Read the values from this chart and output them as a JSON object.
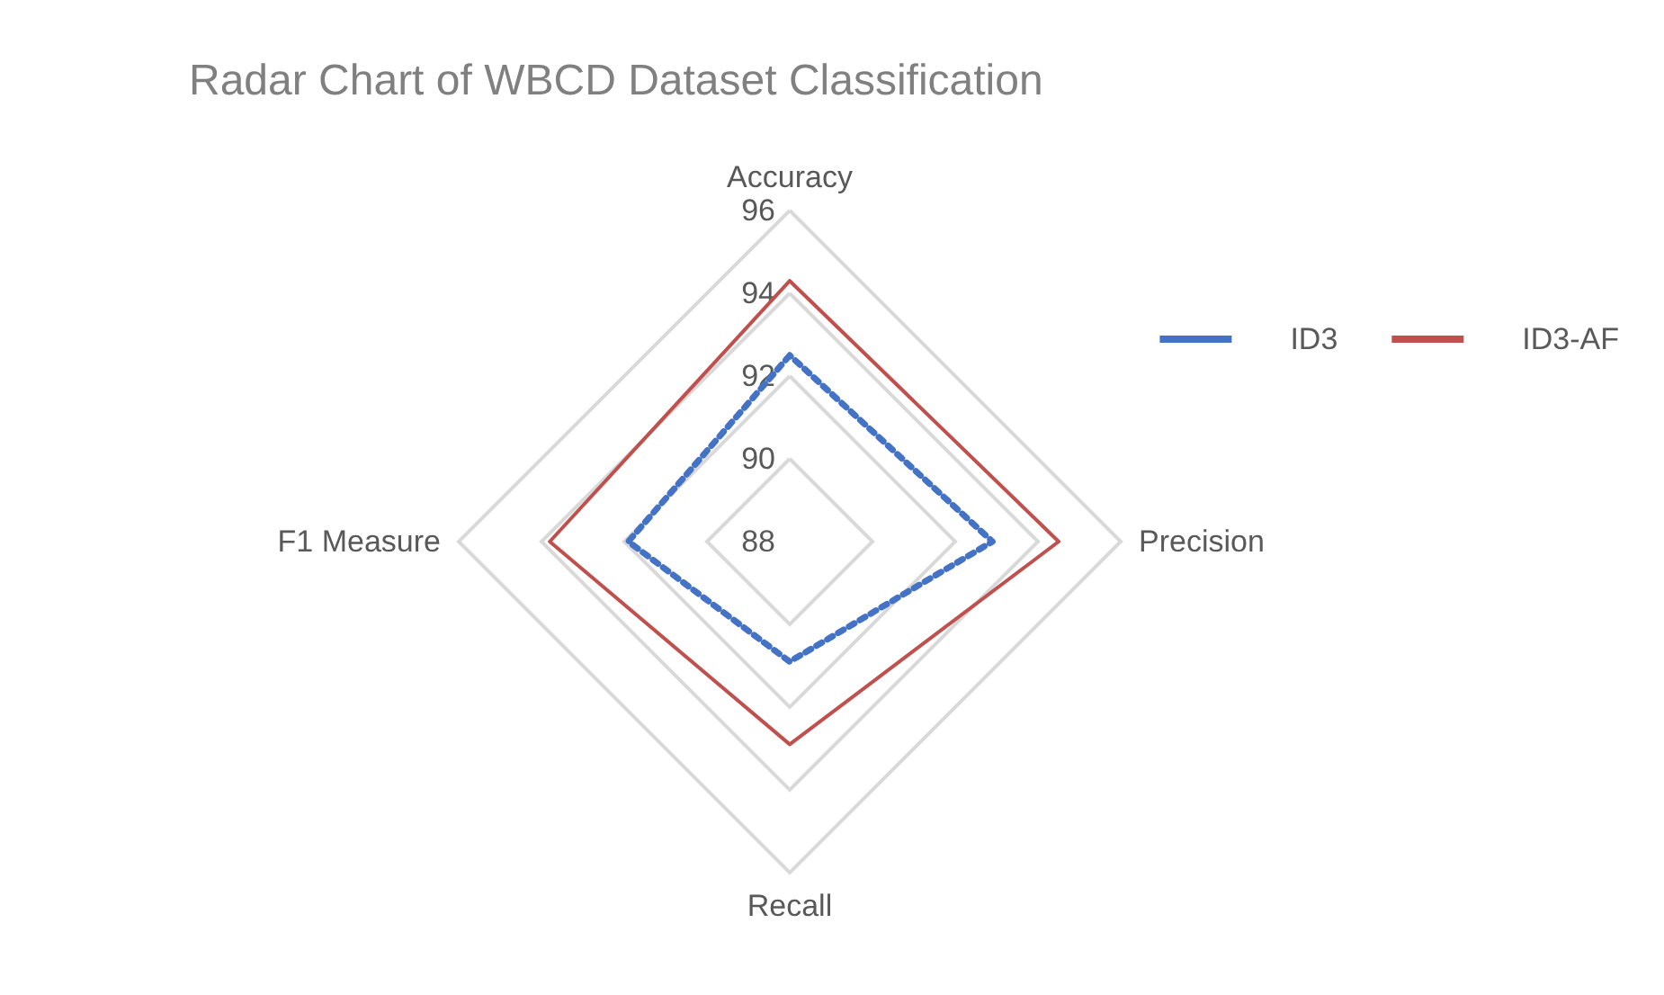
{
  "chart_data": {
    "type": "radar",
    "title": "Radar Chart of WBCD Dataset Classification",
    "categories": [
      "Accuracy",
      "Precision",
      "Recall",
      "F1 Measure"
    ],
    "series": [
      {
        "name": "ID3",
        "color": "#4472c4",
        "line_style": "dotted",
        "values": [
          92.5,
          92.9,
          90.9,
          91.9
        ]
      },
      {
        "name": "ID3-AF",
        "color": "#c0504d",
        "line_style": "solid",
        "values": [
          94.3,
          94.5,
          92.9,
          93.8
        ]
      }
    ],
    "ylim": [
      88,
      96
    ],
    "yticks": [
      88,
      90,
      92,
      94,
      96
    ],
    "grid": true,
    "legend": "right",
    "marker": "none"
  }
}
